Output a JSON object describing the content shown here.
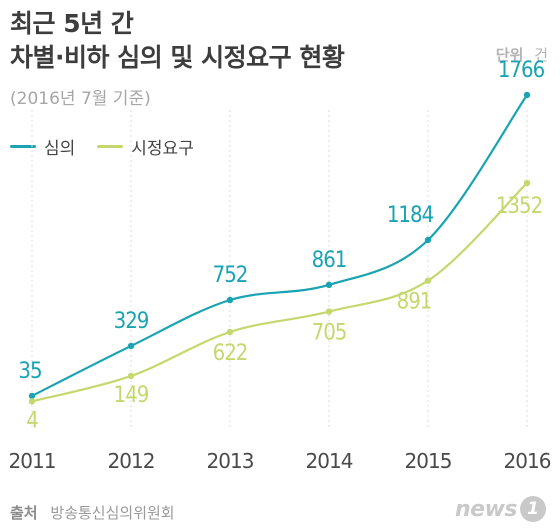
{
  "header": {
    "title_line1": "최근 5년 간",
    "title_line2": "차별·비하 심의 및 시정요구 현황",
    "unit_label": "단위",
    "unit_value": "건",
    "basis": "(2016년 7월 기준)"
  },
  "legend": {
    "series": [
      {
        "name": "심의",
        "color": "#1aa3b3"
      },
      {
        "name": "시정요구",
        "color": "#c5d86d"
      }
    ]
  },
  "chart_data": {
    "type": "line",
    "title": "차별·비하 심의 및 시정요구 현황",
    "x": [
      "2011",
      "2012",
      "2013",
      "2014",
      "2015",
      "2016"
    ],
    "series": [
      {
        "name": "심의",
        "values": [
          35,
          329,
          752,
          861,
          1184,
          1766
        ],
        "color": "#1aa3b3"
      },
      {
        "name": "시정요구",
        "values": [
          4,
          149,
          622,
          705,
          891,
          1352
        ],
        "color": "#c5d86d"
      }
    ],
    "ylim": [
      0,
      1800
    ],
    "grid": "vertical dotted at each year",
    "legend_position": "top-left"
  },
  "footer": {
    "source_label": "출처",
    "source_value": "방송통신심의위원회",
    "logo_word": "news",
    "logo_badge": "1"
  }
}
